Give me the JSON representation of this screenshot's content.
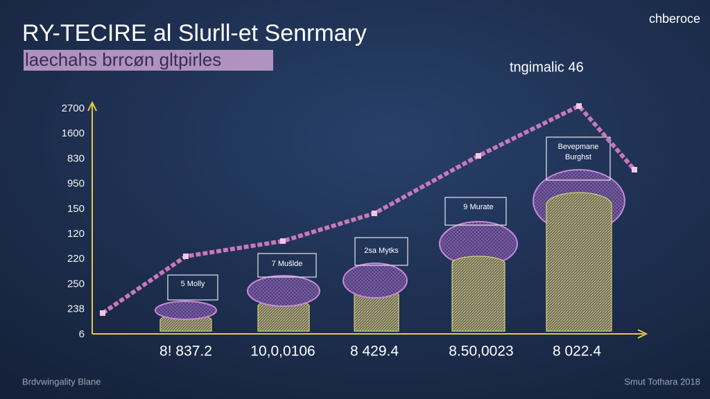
{
  "header": {
    "title": "RY-TECIRE al Slurll-et Senrmary",
    "subtitle": "laechahs brrcøn gltpirles",
    "brand": "chberoce",
    "annotation": "tngimalic 46"
  },
  "y_axis_labels": [
    "2700",
    "1600",
    "830",
    "950",
    "150",
    "120",
    "220",
    "250",
    "238",
    "6"
  ],
  "callouts": [
    "5 Molly",
    "7 Mušlde",
    "2sa Mytks",
    "9 Murate",
    "Bevepmane Burghst"
  ],
  "x_labels": [
    "8! 837.2",
    "10,0,0106",
    "8 429.4",
    "8.50,0023",
    "8 022.4"
  ],
  "footer": {
    "left": "Brdvwingality Blane",
    "right": "Smut Tothara 2018"
  }
}
